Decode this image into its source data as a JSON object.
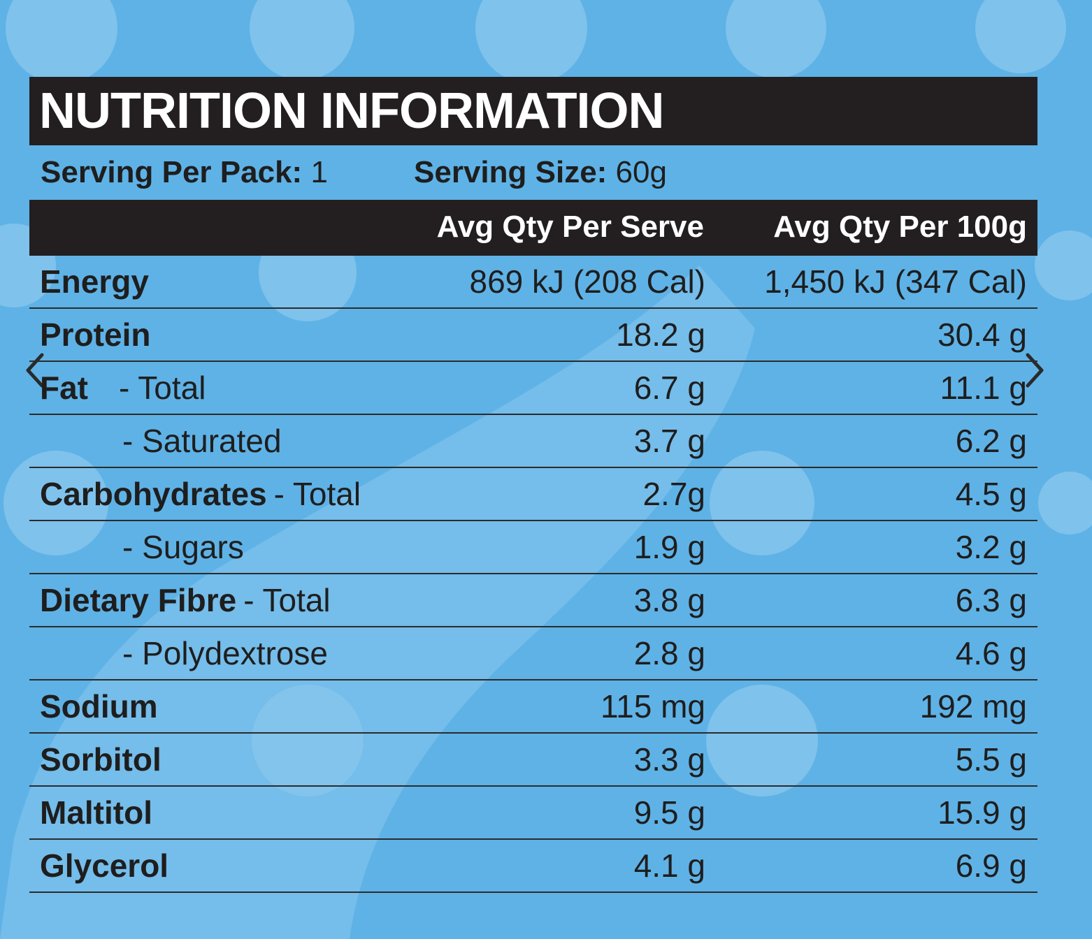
{
  "title": "NUTRITION INFORMATION",
  "serving": {
    "per_pack_label": "Serving Per Pack:",
    "per_pack_value": "1",
    "size_label": "Serving Size:",
    "size_value": "60g"
  },
  "columns": {
    "per_serve": "Avg Qty Per Serve",
    "per_100g": "Avg Qty Per 100g"
  },
  "rows": [
    {
      "name": "Energy",
      "sub": "",
      "per_serve": "869 kJ (208 Cal)",
      "per_100g": "1,450 kJ (347 Cal)"
    },
    {
      "name": "Protein",
      "sub": "",
      "per_serve": "18.2 g",
      "per_100g": "30.4 g"
    },
    {
      "name": "Fat",
      "sub": "- Total",
      "per_serve": "6.7 g",
      "per_100g": "11.1 g"
    },
    {
      "name": "",
      "sub": "- Saturated",
      "per_serve": "3.7 g",
      "per_100g": "6.2 g"
    },
    {
      "name": "Carbohydrates",
      "sub": "- Total",
      "per_serve": "2.7g",
      "per_100g": "4.5 g"
    },
    {
      "name": "",
      "sub": "- Sugars",
      "per_serve": "1.9 g",
      "per_100g": "3.2 g"
    },
    {
      "name": "Dietary Fibre",
      "sub": "- Total",
      "per_serve": "3.8 g",
      "per_100g": "6.3 g"
    },
    {
      "name": "",
      "sub": "- Polydextrose",
      "per_serve": "2.8 g",
      "per_100g": "4.6 g"
    },
    {
      "name": "Sodium",
      "sub": "",
      "per_serve": "115 mg",
      "per_100g": "192 mg"
    },
    {
      "name": "Sorbitol",
      "sub": "",
      "per_serve": "3.3 g",
      "per_100g": "5.5 g"
    },
    {
      "name": "Maltitol",
      "sub": "",
      "per_serve": "9.5 g",
      "per_100g": "15.9 g"
    },
    {
      "name": "Glycerol",
      "sub": "",
      "per_serve": "4.1 g",
      "per_100g": "6.9 g"
    }
  ],
  "icons": {
    "prev": "chevron-left-icon",
    "next": "chevron-right-icon"
  },
  "colors": {
    "background": "#5fb2e6",
    "bar": "#231f20",
    "text": "#1e1e1e"
  }
}
